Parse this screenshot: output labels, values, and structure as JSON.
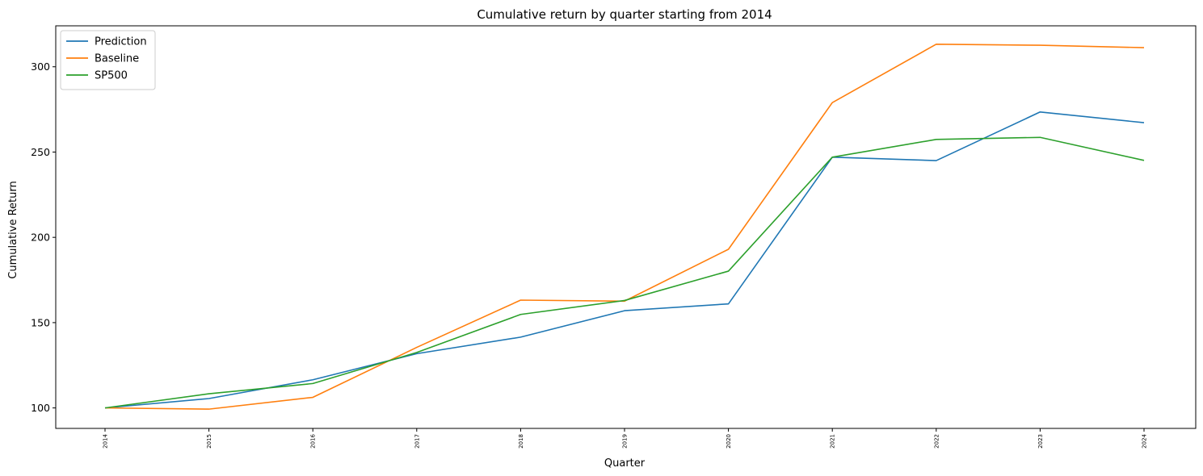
{
  "chart_data": {
    "type": "line",
    "title": "Cumulative return by quarter starting from 2014",
    "xlabel": "Quarter",
    "ylabel": "Cumulative Return",
    "categories": [
      "2014",
      "2015",
      "2016",
      "2017",
      "2018",
      "2019",
      "2020",
      "2021",
      "2022",
      "2023",
      "2024"
    ],
    "ylim": [
      88,
      324
    ],
    "yticks": [
      100,
      150,
      200,
      250,
      300
    ],
    "grid": false,
    "legend_position": "top-left",
    "series": [
      {
        "name": "Prediction",
        "color": "#1f77b4",
        "values": [
          100,
          105.5,
          116.5,
          131.8,
          141.5,
          157,
          161,
          247,
          245,
          273.5,
          267.2
        ]
      },
      {
        "name": "Baseline",
        "color": "#ff7f0e",
        "values": [
          100,
          99.3,
          106.2,
          135.5,
          163.2,
          162.6,
          193,
          279,
          313.2,
          312.6,
          311.2
        ]
      },
      {
        "name": "SP500",
        "color": "#2ca02c",
        "values": [
          100,
          108.3,
          114.3,
          132.5,
          154.8,
          163,
          180.2,
          247,
          257.4,
          258.6,
          245.1
        ]
      }
    ]
  }
}
